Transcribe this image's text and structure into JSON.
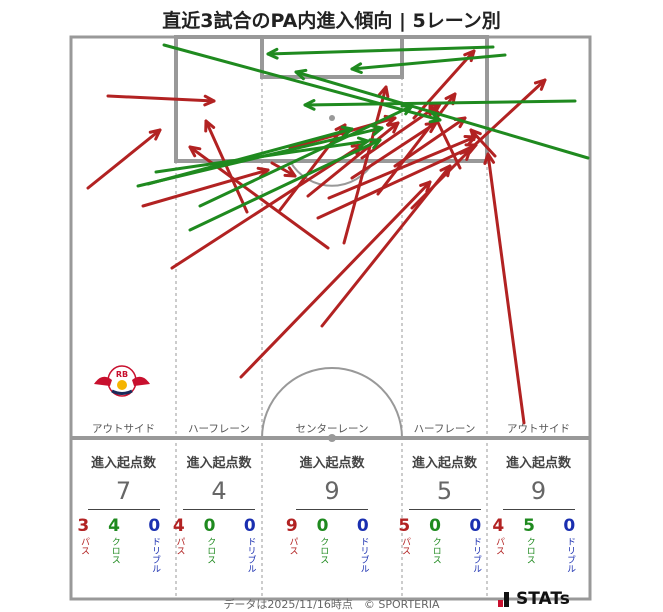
{
  "title": "直近3試合のPA内進入傾向 | 5レーン別",
  "lanes": [
    {
      "label": "アウトサイド",
      "head": "進入起点数",
      "total": "7",
      "pass": "3",
      "cross": "4",
      "dribble": "0"
    },
    {
      "label": "ハーフレーン",
      "head": "進入起点数",
      "total": "4",
      "pass": "4",
      "cross": "0",
      "dribble": "0"
    },
    {
      "label": "センターレーン",
      "head": "進入起点数",
      "total": "9",
      "pass": "9",
      "cross": "0",
      "dribble": "0"
    },
    {
      "label": "ハーフレーン",
      "head": "進入起点数",
      "total": "5",
      "pass": "5",
      "cross": "0",
      "dribble": "0"
    },
    {
      "label": "アウトサイド",
      "head": "進入起点数",
      "total": "9",
      "pass": "4",
      "cross": "5",
      "dribble": "0"
    }
  ],
  "legend": {
    "pass": "パス",
    "cross": "クロス",
    "dribble": "ドリブル"
  },
  "colors": {
    "pass": "#b22222",
    "cross": "#1f8a1f",
    "dribble": "#1a2fb0",
    "pitch_line": "#999999"
  },
  "footer": "データは2025/11/16時点　© SPORTERIA",
  "brand": "STATs",
  "team_logo": "RB",
  "logo_text": "RB LEIPZIG"
}
